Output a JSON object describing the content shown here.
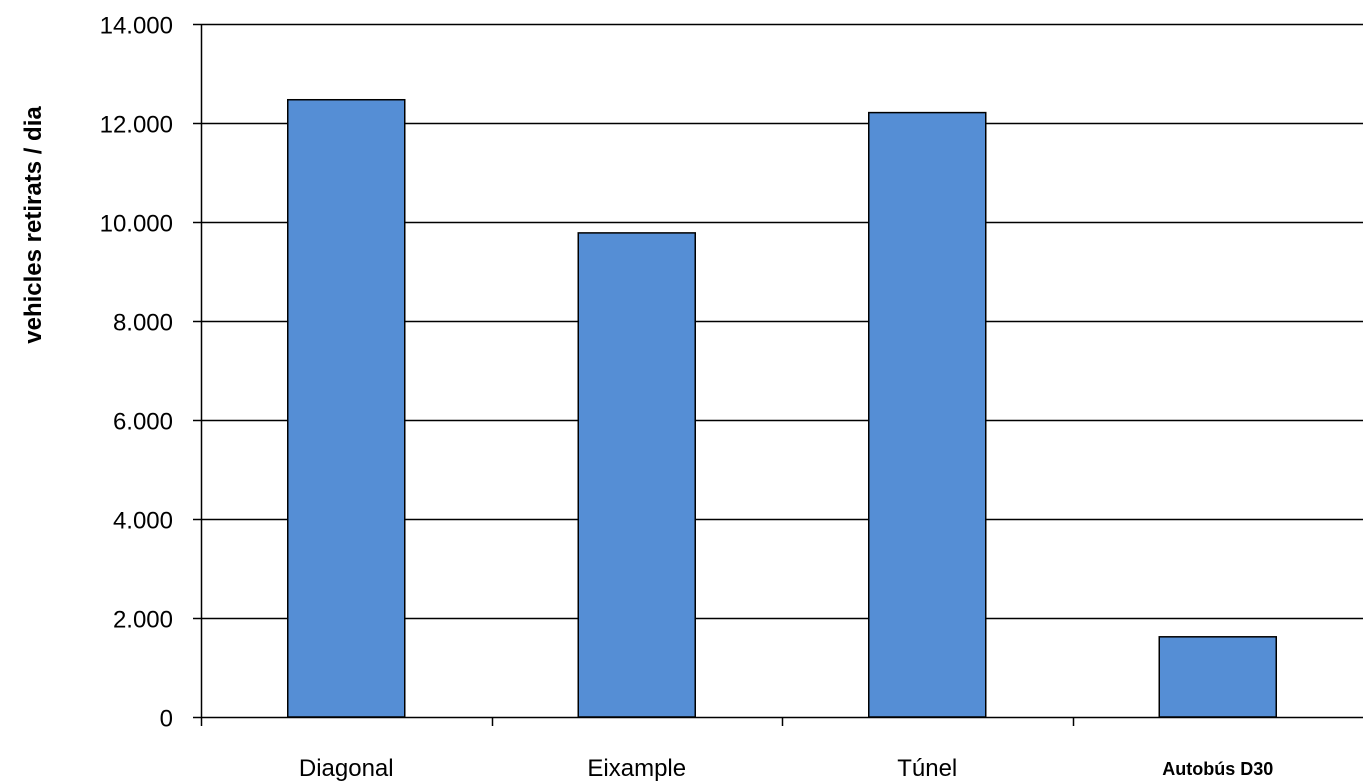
{
  "chart_data": {
    "type": "bar",
    "categories": [
      "Diagonal",
      "Eixample",
      "Túnel",
      "Autobús D30"
    ],
    "values": [
      12470,
      9780,
      12210,
      1620
    ],
    "ylabel": "vehicles retirats / dia",
    "xlabel": "",
    "ylim": [
      0,
      14000
    ],
    "yticks": [
      0,
      2000,
      4000,
      6000,
      8000,
      10000,
      12000,
      14000
    ],
    "ytick_labels": [
      "0",
      "2.000",
      "4.000",
      "6.000",
      "8.000",
      "10.000",
      "12.000",
      "14.000"
    ],
    "grid": true,
    "bar_color": "#558ed5",
    "bar_edge_color": "#000000",
    "bold_categories": [
      "Autobús D30"
    ]
  }
}
